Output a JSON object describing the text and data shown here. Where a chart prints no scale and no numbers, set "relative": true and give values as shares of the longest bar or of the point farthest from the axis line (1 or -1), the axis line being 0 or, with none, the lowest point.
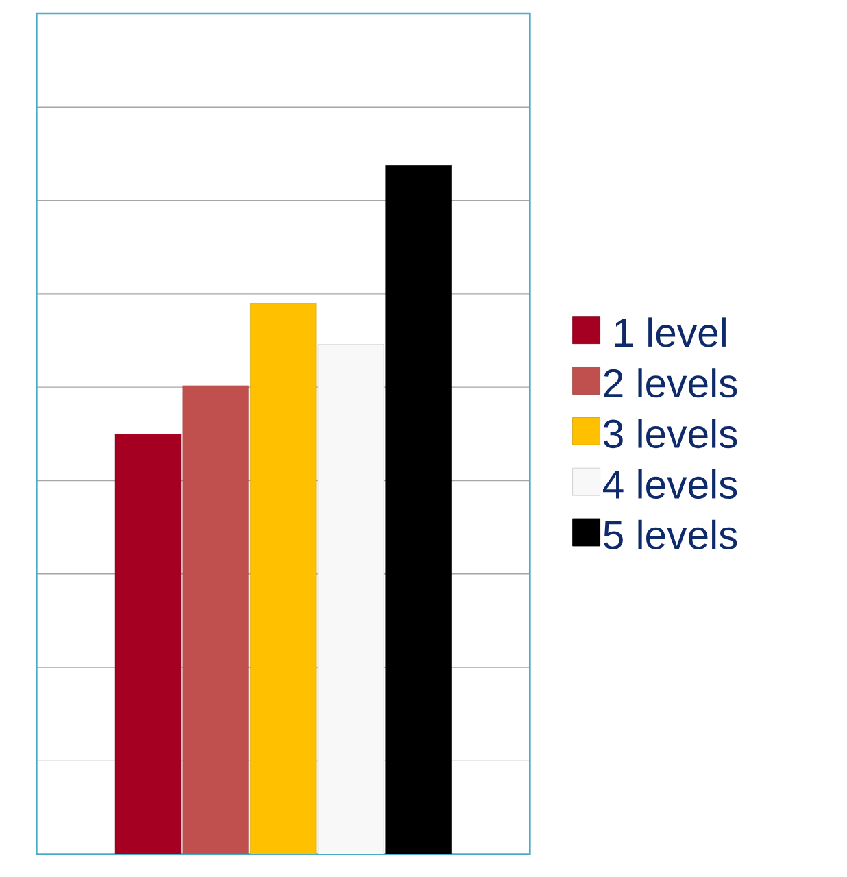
{
  "chart_data": {
    "type": "bar",
    "relative": true,
    "categories": [
      null
    ],
    "series": [
      {
        "name": "1 level",
        "color": "#a50021",
        "values": [
          0.61
        ]
      },
      {
        "name": "2 levels",
        "color": "#c0504d",
        "values": [
          0.68
        ]
      },
      {
        "name": "3 levels",
        "color": "#ffc000",
        "values": [
          0.8
        ]
      },
      {
        "name": "4 levels",
        "color": "#f8f8f8",
        "values": [
          0.74
        ]
      },
      {
        "name": "5 levels",
        "color": "#000000",
        "values": [
          1.0
        ]
      }
    ],
    "grid": "y",
    "legend": "right"
  }
}
